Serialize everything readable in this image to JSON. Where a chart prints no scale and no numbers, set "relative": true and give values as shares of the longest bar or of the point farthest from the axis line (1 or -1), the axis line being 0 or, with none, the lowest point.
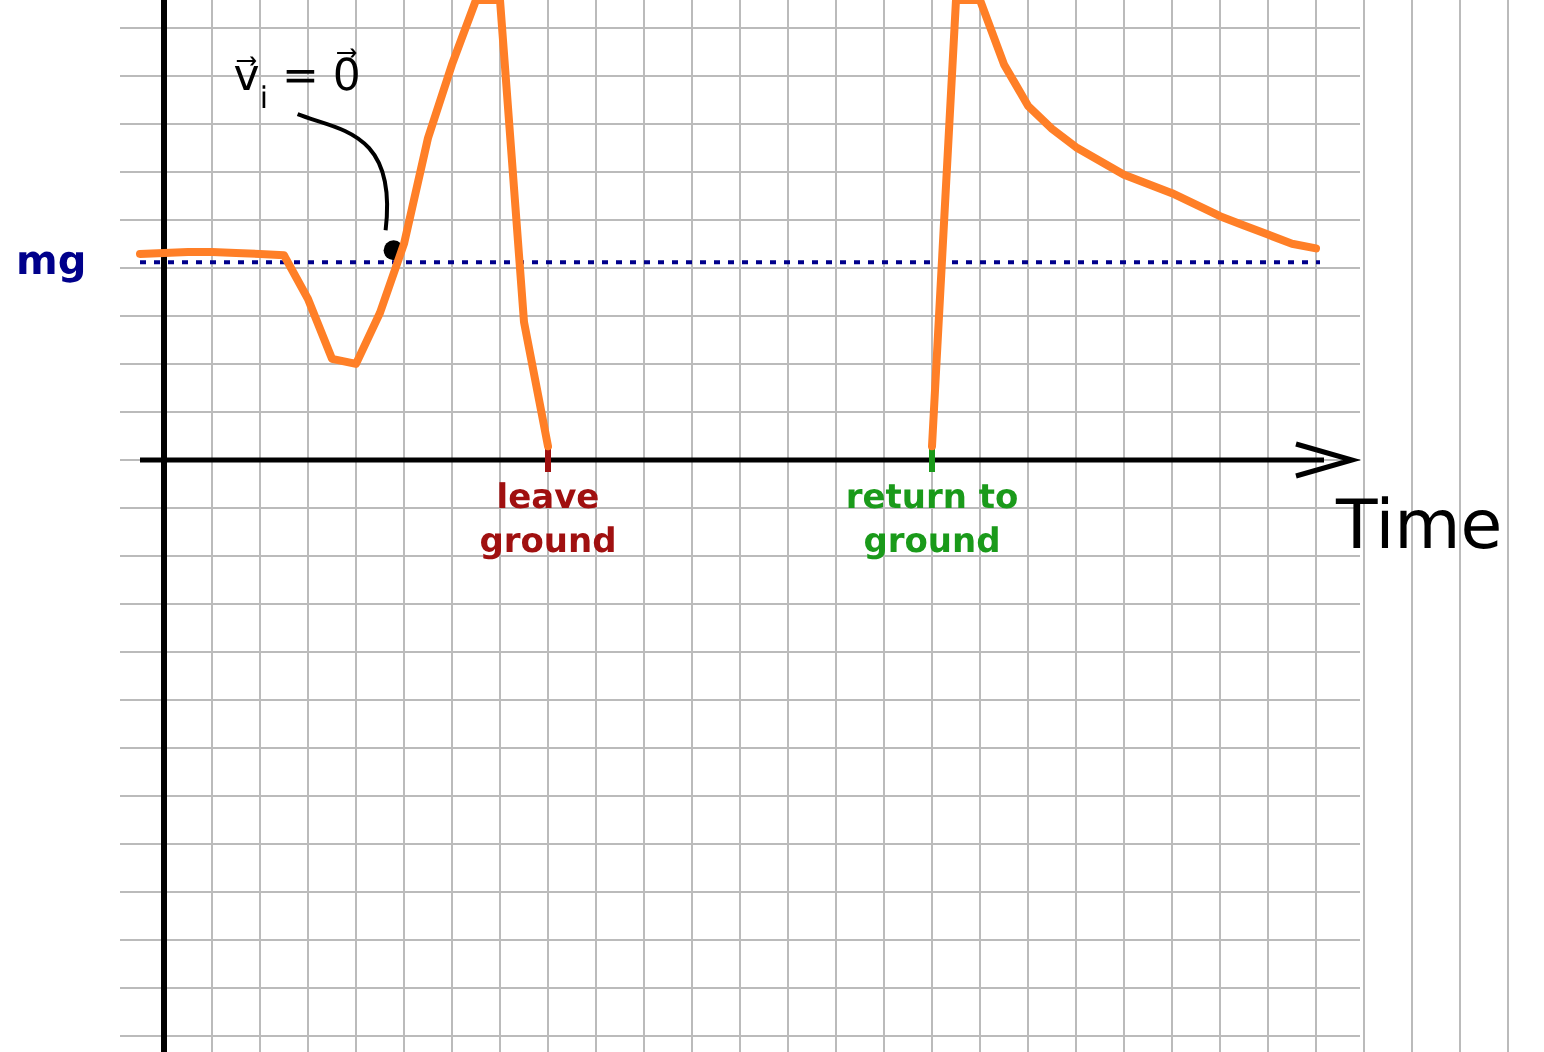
{
  "chart_data": {
    "type": "line",
    "xlabel": "Time",
    "relative": true,
    "grid": true,
    "marker": "none",
    "line_style": "solid",
    "categories": [
      null,
      null,
      null,
      null,
      null,
      null,
      null,
      null,
      null,
      null,
      null,
      null,
      null,
      null,
      null,
      null,
      null,
      "leave ground",
      null,
      null,
      null,
      null,
      null,
      null,
      null,
      null,
      null,
      null,
      null,
      null,
      null,
      null,
      null,
      "return to ground",
      null,
      null,
      null,
      null,
      null,
      null,
      null,
      null,
      null,
      null,
      null,
      null,
      null,
      null,
      null,
      null
    ],
    "series": [
      {
        "color": "#ff7f27",
        "values": [
          0.448,
          0.45,
          0.452,
          0.452,
          0.45,
          0.448,
          0.445,
          0.35,
          0.22,
          0.209,
          0.32,
          0.47,
          0.7,
          0.86,
          1.0,
          1.0,
          0.3,
          0.03,
          null,
          null,
          null,
          null,
          null,
          null,
          null,
          null,
          null,
          null,
          null,
          null,
          null,
          null,
          null,
          0.03,
          1.0,
          1.0,
          0.86,
          0.77,
          0.72,
          0.68,
          0.65,
          0.62,
          0.6,
          0.58,
          0.555,
          0.53,
          0.51,
          0.49,
          0.47,
          0.46
        ]
      }
    ],
    "ref_lines": [
      {
        "axis": "y",
        "value": 0.43,
        "label": "mg",
        "color": "#00008b",
        "line_style": "dotted"
      }
    ],
    "annotations": [
      "v⃗$_{i}$ = 0⃗"
    ]
  }
}
